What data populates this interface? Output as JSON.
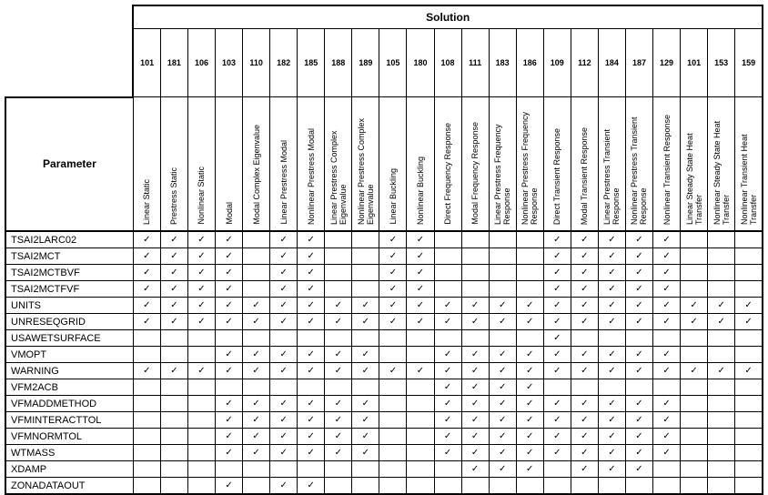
{
  "header": {
    "group_label": "Solution",
    "parameter_label": "Parameter",
    "check_symbol": "✓",
    "solutions": [
      {
        "number": "101",
        "name": "Linear Static"
      },
      {
        "number": "181",
        "name": "Prestress Static"
      },
      {
        "number": "106",
        "name": "Nonlinear Static"
      },
      {
        "number": "103",
        "name": "Modal"
      },
      {
        "number": "110",
        "name": "Modal Complex Eigenvalue"
      },
      {
        "number": "182",
        "name": "Linear Prestress Modal"
      },
      {
        "number": "185",
        "name": "Nonlinear Prestress Modal"
      },
      {
        "number": "188",
        "name": "Linear Prestress Complex Eigenvalue"
      },
      {
        "number": "189",
        "name": "Nonlinear Prestress Complex Eigenvalue"
      },
      {
        "number": "105",
        "name": "Linear Buckling"
      },
      {
        "number": "180",
        "name": "Nonlinear Buckling"
      },
      {
        "number": "108",
        "name": "Direct Frequency Response"
      },
      {
        "number": "111",
        "name": "Modal Frequency Response"
      },
      {
        "number": "183",
        "name": "Linear Prestress Frequency Response"
      },
      {
        "number": "186",
        "name": "Nonlinear Prestress Frequency Response"
      },
      {
        "number": "109",
        "name": "Direct Transient Response"
      },
      {
        "number": "112",
        "name": "Modal Transient Response"
      },
      {
        "number": "184",
        "name": "Linear Prestress Transient Response"
      },
      {
        "number": "187",
        "name": "Nonlinear Prestress Transient Response"
      },
      {
        "number": "129",
        "name": "Nonlinear Transient Response"
      },
      {
        "number": "101",
        "name": "Linear Steady State Heat Transfer"
      },
      {
        "number": "153",
        "name": "Nonlinear Steady State Heat Transfer"
      },
      {
        "number": "159",
        "name": "Nonlinear Transient Heat Transfer"
      }
    ]
  },
  "rows": [
    {
      "parameter": "TSAI2LARC02",
      "checks": [
        1,
        1,
        1,
        1,
        0,
        1,
        1,
        0,
        0,
        1,
        1,
        0,
        0,
        0,
        0,
        1,
        1,
        1,
        1,
        1,
        0,
        0,
        0
      ]
    },
    {
      "parameter": "TSAI2MCT",
      "checks": [
        1,
        1,
        1,
        1,
        0,
        1,
        1,
        0,
        0,
        1,
        1,
        0,
        0,
        0,
        0,
        1,
        1,
        1,
        1,
        1,
        0,
        0,
        0
      ]
    },
    {
      "parameter": "TSAI2MCTBVF",
      "checks": [
        1,
        1,
        1,
        1,
        0,
        1,
        1,
        0,
        0,
        1,
        1,
        0,
        0,
        0,
        0,
        1,
        1,
        1,
        1,
        1,
        0,
        0,
        0
      ]
    },
    {
      "parameter": "TSAI2MCTFVF",
      "checks": [
        1,
        1,
        1,
        1,
        0,
        1,
        1,
        0,
        0,
        1,
        1,
        0,
        0,
        0,
        0,
        1,
        1,
        1,
        1,
        1,
        0,
        0,
        0
      ]
    },
    {
      "parameter": "UNITS",
      "checks": [
        1,
        1,
        1,
        1,
        1,
        1,
        1,
        1,
        1,
        1,
        1,
        1,
        1,
        1,
        1,
        1,
        1,
        1,
        1,
        1,
        1,
        1,
        1
      ]
    },
    {
      "parameter": "UNRESEQGRID",
      "checks": [
        1,
        1,
        1,
        1,
        1,
        1,
        1,
        1,
        1,
        1,
        1,
        1,
        1,
        1,
        1,
        1,
        1,
        1,
        1,
        1,
        1,
        1,
        1
      ]
    },
    {
      "parameter": "USAWETSURFACE",
      "checks": [
        0,
        0,
        0,
        0,
        0,
        0,
        0,
        0,
        0,
        0,
        0,
        0,
        0,
        0,
        0,
        1,
        0,
        0,
        0,
        0,
        0,
        0,
        0
      ]
    },
    {
      "parameter": "VMOPT",
      "checks": [
        0,
        0,
        0,
        1,
        1,
        1,
        1,
        1,
        1,
        0,
        0,
        1,
        1,
        1,
        1,
        1,
        1,
        1,
        1,
        1,
        0,
        0,
        0
      ]
    },
    {
      "parameter": "WARNING",
      "checks": [
        1,
        1,
        1,
        1,
        1,
        1,
        1,
        1,
        1,
        1,
        1,
        1,
        1,
        1,
        1,
        1,
        1,
        1,
        1,
        1,
        1,
        1,
        1
      ]
    },
    {
      "parameter": "VFM2ACB",
      "checks": [
        0,
        0,
        0,
        0,
        0,
        0,
        0,
        0,
        0,
        0,
        0,
        1,
        1,
        1,
        1,
        0,
        0,
        0,
        0,
        0,
        0,
        0,
        0
      ]
    },
    {
      "parameter": "VFMADDMETHOD",
      "checks": [
        0,
        0,
        0,
        1,
        1,
        1,
        1,
        1,
        1,
        0,
        0,
        1,
        1,
        1,
        1,
        1,
        1,
        1,
        1,
        1,
        0,
        0,
        0
      ]
    },
    {
      "parameter": "VFMINTERACTTOL",
      "checks": [
        0,
        0,
        0,
        1,
        1,
        1,
        1,
        1,
        1,
        0,
        0,
        1,
        1,
        1,
        1,
        1,
        1,
        1,
        1,
        1,
        0,
        0,
        0
      ]
    },
    {
      "parameter": "VFMNORMTOL",
      "checks": [
        0,
        0,
        0,
        1,
        1,
        1,
        1,
        1,
        1,
        0,
        0,
        1,
        1,
        1,
        1,
        1,
        1,
        1,
        1,
        1,
        0,
        0,
        0
      ]
    },
    {
      "parameter": "WTMASS",
      "checks": [
        0,
        0,
        0,
        1,
        1,
        1,
        1,
        1,
        1,
        0,
        0,
        1,
        1,
        1,
        1,
        1,
        1,
        1,
        1,
        1,
        0,
        0,
        0
      ]
    },
    {
      "parameter": "XDAMP",
      "checks": [
        0,
        0,
        0,
        0,
        0,
        0,
        0,
        0,
        0,
        0,
        0,
        0,
        1,
        1,
        1,
        0,
        1,
        1,
        1,
        0,
        0,
        0,
        0
      ]
    },
    {
      "parameter": "ZONADATAOUT",
      "checks": [
        0,
        0,
        0,
        1,
        0,
        1,
        1,
        0,
        0,
        0,
        0,
        0,
        0,
        0,
        0,
        0,
        0,
        0,
        0,
        0,
        0,
        0,
        0
      ]
    }
  ]
}
